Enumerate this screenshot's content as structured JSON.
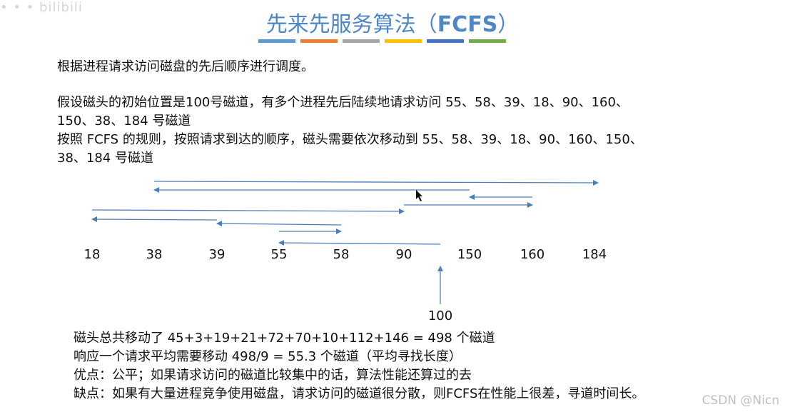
{
  "corner_watermark": "• • • bilibili",
  "title": {
    "main": "先来先服务算法（",
    "acronym": "FCFS",
    "close": "）"
  },
  "title_bar_colors": [
    "#5b9bd5",
    "#ed7d31",
    "#a5a5a5",
    "#ffc000",
    "#4472c4",
    "#70ad47"
  ],
  "intro": "根据进程请求访问磁盘的先后顺序进行调度。",
  "assumption_line1": "假设磁头的初始位置是100号磁道，有多个进程先后陆续地请求访问 55、58、39、18、90、160、",
  "assumption_line2": "150、38、184 号磁道",
  "rule_line1": "按照 FCFS 的规则，按照请求到达的顺序，磁头需要依次移动到 55、58、39、18、90、160、150、",
  "rule_line2": "38、184 号磁道",
  "tracks": [
    "18",
    "38",
    "39",
    "55",
    "58",
    "90",
    "150",
    "160",
    "184"
  ],
  "start_track": "100",
  "summary": {
    "total": "磁头总共移动了  45+3+19+21+72+70+10+112+146 = 498  个磁道",
    "average": "响应一个请求平均需要移动 498/9 = 55.3 个磁道（平均寻找长度）",
    "pros": "优点：公平；如果请求访问的磁道比较集中的话，算法性能还算过的去",
    "cons": "缺点：如果有大量进程竞争使用磁盘，请求访问的磁道很分散，则FCFS在性能上很差，寻道时间长。"
  },
  "csdn_watermark": "CSDN @Nicn",
  "arrow_color": "#4a7ebb"
}
